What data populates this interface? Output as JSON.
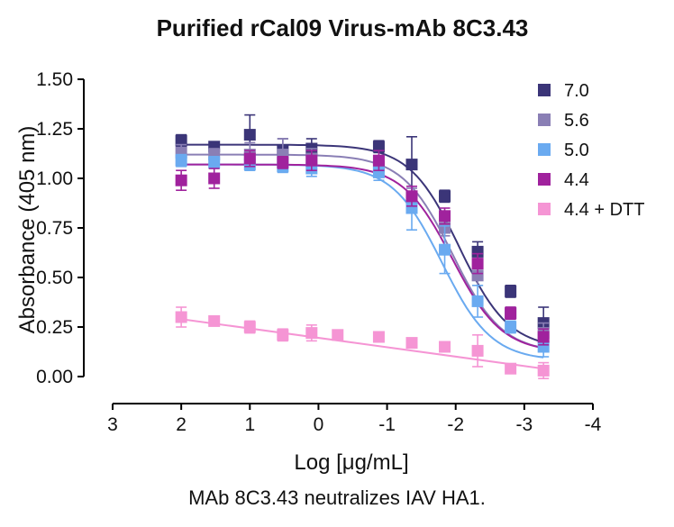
{
  "caption": "MAb 8C3.43 neutralizes IAV HA1.",
  "chart_data": {
    "type": "scatter",
    "title": "Purified rCal09 Virus-mAb 8C3.43",
    "xlabel": "Log [μg/mL]",
    "ylabel": "Absorbance (405 nm)",
    "xlim": [
      3,
      -4
    ],
    "ylim": [
      0,
      1.5
    ],
    "x_ticks": [
      "3",
      "2",
      "1",
      "0",
      "-1",
      "-2",
      "-3",
      "-4"
    ],
    "y_ticks": [
      "0.00",
      "0.25",
      "0.50",
      "0.75",
      "1.00",
      "1.25",
      "1.50"
    ],
    "legend_position": "top-right",
    "series": [
      {
        "name": "7.0",
        "color": "#3b3578",
        "x": [
          2,
          1.52,
          1,
          0.52,
          0.1,
          -0.88,
          -1.36,
          -1.84,
          -2.32,
          -2.8,
          -3.28
        ],
        "y": [
          1.19,
          1.16,
          1.22,
          1.14,
          1.15,
          1.16,
          1.07,
          0.91,
          0.63,
          0.43,
          0.27
        ],
        "err": [
          0.03,
          0.02,
          0.1,
          0.06,
          0.05,
          0.03,
          0.14,
          0.03,
          0.05,
          0.03,
          0.08
        ],
        "fit": {
          "top": 1.17,
          "bottom": 0.14,
          "ec50": -2.05,
          "slope": 1.2
        }
      },
      {
        "name": "5.6",
        "color": "#8a7fb5",
        "x": [
          2,
          1.52,
          1,
          0.52,
          0.1,
          -0.88,
          -1.36,
          -1.84,
          -2.32,
          -2.8,
          -3.28
        ],
        "y": [
          1.13,
          1.12,
          1.12,
          1.12,
          1.1,
          1.06,
          0.9,
          0.75,
          0.51,
          0.32,
          0.22
        ],
        "err": [
          0.04,
          0.03,
          0.06,
          0.08,
          0.05,
          0.04,
          0.05,
          0.04,
          0.05,
          0.03,
          0.05
        ],
        "fit": {
          "top": 1.12,
          "bottom": 0.12,
          "ec50": -1.95,
          "slope": 1.2
        }
      },
      {
        "name": "5.0",
        "color": "#6aaaf0",
        "x": [
          2,
          1.52,
          1,
          0.52,
          0.1,
          -0.88,
          -1.36,
          -1.84,
          -2.32,
          -2.8,
          -3.28
        ],
        "y": [
          1.09,
          1.08,
          1.07,
          1.06,
          1.05,
          1.03,
          0.85,
          0.64,
          0.38,
          0.25,
          0.15
        ],
        "err": [
          0.03,
          0.03,
          0.03,
          0.03,
          0.04,
          0.04,
          0.11,
          0.12,
          0.08,
          0.03,
          0.05
        ],
        "fit": {
          "top": 1.07,
          "bottom": 0.08,
          "ec50": -1.8,
          "slope": 1.2
        }
      },
      {
        "name": "4.4",
        "color": "#a0229d",
        "x": [
          2,
          1.52,
          1,
          0.52,
          0.1,
          -0.88,
          -1.36,
          -1.84,
          -2.32,
          -2.8,
          -3.28
        ],
        "y": [
          0.99,
          1.0,
          1.1,
          1.08,
          1.09,
          1.09,
          0.91,
          0.81,
          0.57,
          0.32,
          0.2
        ],
        "err": [
          0.05,
          0.05,
          0.04,
          0.03,
          0.05,
          0.05,
          0.05,
          0.04,
          0.05,
          0.03,
          0.04
        ],
        "fit": {
          "top": 1.07,
          "bottom": 0.12,
          "ec50": -1.95,
          "slope": 1.2
        }
      },
      {
        "name": "4.4 + DTT",
        "color": "#f595d4",
        "x": [
          2,
          1.52,
          1,
          0.52,
          0.1,
          -0.28,
          -0.88,
          -1.36,
          -1.84,
          -2.32,
          -2.8,
          -3.28
        ],
        "y": [
          0.3,
          0.28,
          0.25,
          0.21,
          0.22,
          0.21,
          0.2,
          0.17,
          0.15,
          0.13,
          0.04,
          0.03
        ],
        "err": [
          0.05,
          0.02,
          0.03,
          0.03,
          0.04,
          0.02,
          0.02,
          0.02,
          0.02,
          0.08,
          0.02,
          0.04
        ],
        "fit_line": {
          "x": [
            2,
            -3.28
          ],
          "y": [
            0.29,
            0.04
          ]
        }
      }
    ]
  }
}
